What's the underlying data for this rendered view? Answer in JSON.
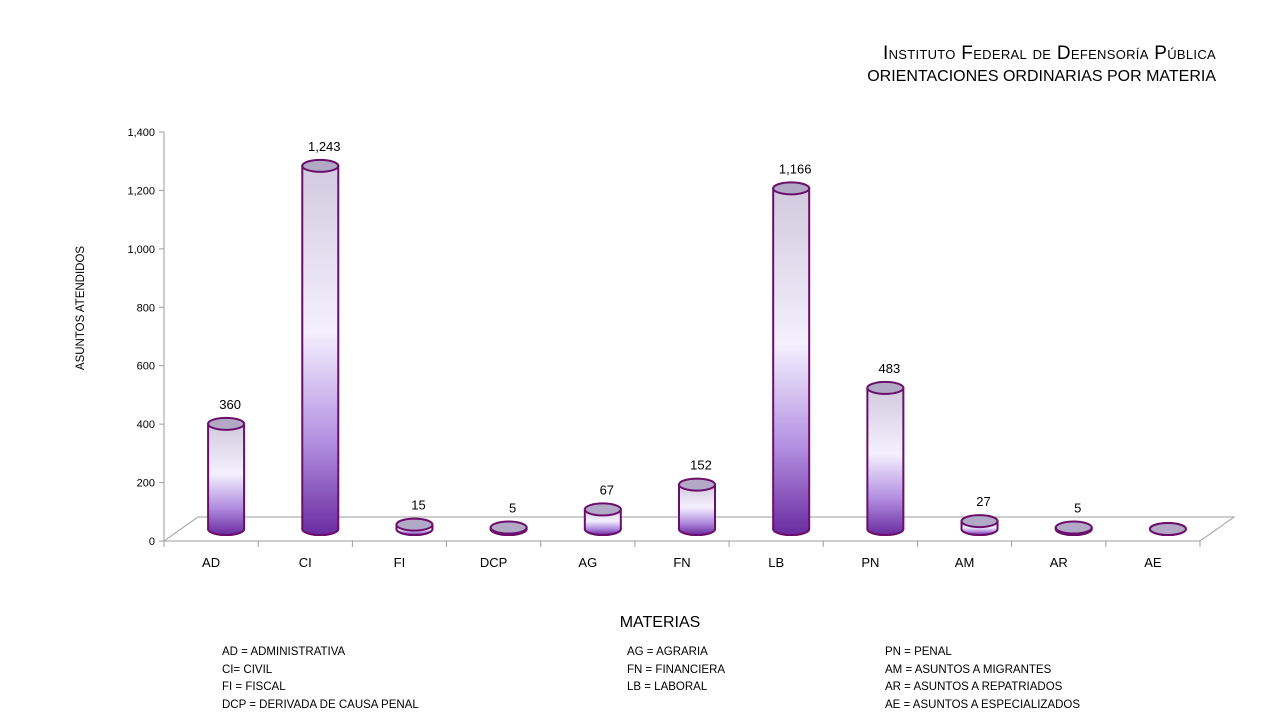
{
  "title": "Instituto Federal de Defensoría Pública",
  "subtitle": "ORIENTACIONES ORDINARIAS POR MATERIA",
  "chart_data": {
    "type": "bar",
    "style": "3d-cylinder",
    "categories": [
      "AD",
      "CI",
      "FI",
      "DCP",
      "AG",
      "FN",
      "LB",
      "PN",
      "AM",
      "AR",
      "AE"
    ],
    "values": [
      360,
      1243,
      15,
      5,
      67,
      152,
      1166,
      483,
      27,
      5,
      null
    ],
    "data_labels": [
      "360",
      "1,243",
      "15",
      "5",
      "67",
      "152",
      "1,166",
      "483",
      "27",
      "5",
      ""
    ],
    "xlabel": "MATERIAS",
    "ylabel": "ASUNTOS ATENDIDOS",
    "ylim": [
      0,
      1400
    ],
    "yticks": [
      0,
      200,
      400,
      600,
      800,
      1000,
      1200,
      1400
    ],
    "ytick_labels": [
      "0",
      "200",
      "400",
      "600",
      "800",
      "1,000",
      "1,200",
      "1,400"
    ],
    "grid": false,
    "colors": {
      "bar_dark": "#6a2ba0",
      "bar_light": "#f4f0ff",
      "bar_edge": "#6b0f6b",
      "bar_top": "#b1a9c6"
    }
  },
  "legend": {
    "col1": [
      "AD = ADMINISTRATIVA",
      "CI= CIVIL",
      "FI = FISCAL",
      "DCP =  DERIVADA DE CAUSA  PENAL"
    ],
    "col2": [
      "AG = AGRARIA",
      "FN = FINANCIERA",
      "LB = LABORAL"
    ],
    "col3": [
      "PN = PENAL",
      "AM = ASUNTOS  A MIGRANTES",
      "AR = ASUNTOS  A REPATRIADOS",
      "AE = ASUNTOS  A ESPECIALIZADOS"
    ]
  }
}
